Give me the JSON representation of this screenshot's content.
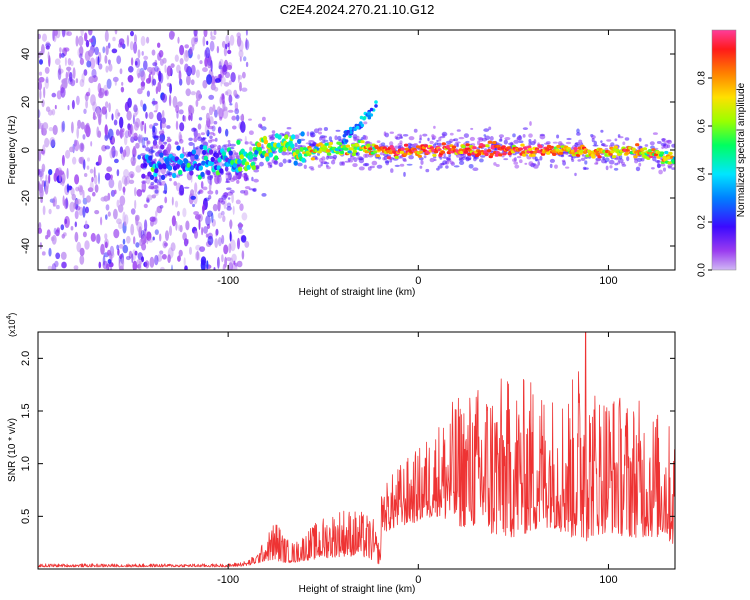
{
  "title": "C2E4.2024.270.21.10.G12",
  "colors": {
    "snr_line": "#ee3333",
    "axis": "#000000",
    "background": "#ffffff"
  },
  "chart_data": [
    {
      "type": "heatmap",
      "name": "spectrogram",
      "xlabel": "Height of straight line (km)",
      "ylabel": "Frequency (Hz)",
      "xlim": [
        -200,
        135
      ],
      "ylim": [
        -50,
        50
      ],
      "x_ticks": [
        -100,
        0,
        100
      ],
      "x_tick_labels": [
        "-100",
        "0",
        "100"
      ],
      "y_ticks": [
        -40,
        -20,
        0,
        20,
        40
      ],
      "y_tick_labels": [
        "-40",
        "-20",
        "0",
        "20",
        "40"
      ],
      "colorbar": {
        "label": "Normalized spectral amplitude",
        "range": [
          0,
          1
        ],
        "ticks": [
          0.0,
          0.2,
          0.4,
          0.6,
          0.8
        ],
        "tick_labels": [
          "0.0",
          "0.2",
          "0.4",
          "0.6",
          "0.8"
        ],
        "colormap": [
          "#c8a8f0",
          "#9a3cf0",
          "#3b0aff",
          "#0080ff",
          "#00e6ff",
          "#00ff60",
          "#9aff00",
          "#ffe000",
          "#ff8000",
          "#ff1a1a",
          "#ff3c9a"
        ]
      },
      "ridge": {
        "description": "dominant frequency track vs height",
        "x": [
          -140,
          -120,
          -100,
          -90,
          -80,
          -70,
          -60,
          -50,
          -40,
          -30,
          -25,
          -20,
          -10,
          0,
          10,
          20,
          30,
          40,
          50,
          60,
          70,
          80,
          90,
          100,
          110,
          120,
          130,
          135
        ],
        "y": [
          -6,
          -5,
          -4,
          -3,
          1,
          2,
          -1,
          1,
          0,
          1,
          0,
          0,
          -1,
          0,
          0,
          0,
          0,
          0,
          0,
          0,
          0,
          0,
          -1,
          -1,
          0,
          -1,
          -3,
          -4
        ],
        "amplitude": [
          0.25,
          0.3,
          0.35,
          0.45,
          0.55,
          0.5,
          0.55,
          0.6,
          0.55,
          0.6,
          0.7,
          0.8,
          0.9,
          0.85,
          0.9,
          0.85,
          0.9,
          0.85,
          0.9,
          0.85,
          0.8,
          0.75,
          0.75,
          0.7,
          0.75,
          0.7,
          0.6,
          0.5
        ]
      },
      "features": {
        "scatter_x_range": [
          -200,
          -90
        ],
        "branch": {
          "x": [
            -40,
            -22
          ],
          "y": [
            4,
            18
          ]
        }
      }
    },
    {
      "type": "line",
      "name": "snr",
      "xlabel": "Height of straight line (km)",
      "ylabel": "SNR (10 * v/v)",
      "y_multiplier": "(x10",
      "y_multiplier_exp": "4",
      "y_multiplier_close": ")",
      "xlim": [
        -200,
        135
      ],
      "ylim": [
        0,
        2.25
      ],
      "x_ticks": [
        -100,
        0,
        100
      ],
      "x_tick_labels": [
        "-100",
        "0",
        "100"
      ],
      "y_ticks": [
        0.5,
        1.0,
        1.5,
        2.0
      ],
      "y_tick_labels": [
        "0.5",
        "1.0",
        "1.5",
        "2.0"
      ],
      "envelope": {
        "x": [
          -200,
          -100,
          -90,
          -85,
          -80,
          -75,
          -70,
          -65,
          -60,
          -50,
          -40,
          -30,
          -24,
          -20,
          -19,
          -18,
          -10,
          0,
          10,
          20,
          30,
          40,
          50,
          60,
          70,
          80,
          88,
          90,
          100,
          110,
          120,
          130,
          135
        ],
        "baseline": [
          0.02,
          0.02,
          0.03,
          0.05,
          0.08,
          0.08,
          0.06,
          0.06,
          0.08,
          0.1,
          0.12,
          0.12,
          0.08,
          0.04,
          0.4,
          0.35,
          0.4,
          0.45,
          0.5,
          0.4,
          0.4,
          0.3,
          0.3,
          0.35,
          0.4,
          0.3,
          0.25,
          0.3,
          0.35,
          0.3,
          0.3,
          0.3,
          0.2
        ],
        "peak": [
          0.05,
          0.05,
          0.08,
          0.15,
          0.3,
          0.5,
          0.3,
          0.25,
          0.35,
          0.5,
          0.6,
          0.55,
          0.5,
          0.2,
          1.0,
          0.8,
          1.0,
          1.15,
          1.4,
          1.65,
          1.75,
          1.85,
          1.8,
          1.85,
          1.7,
          1.75,
          2.25,
          1.8,
          1.75,
          1.65,
          1.6,
          1.45,
          1.3
        ]
      },
      "max_point": {
        "x": 88,
        "y": 2.25
      }
    }
  ]
}
